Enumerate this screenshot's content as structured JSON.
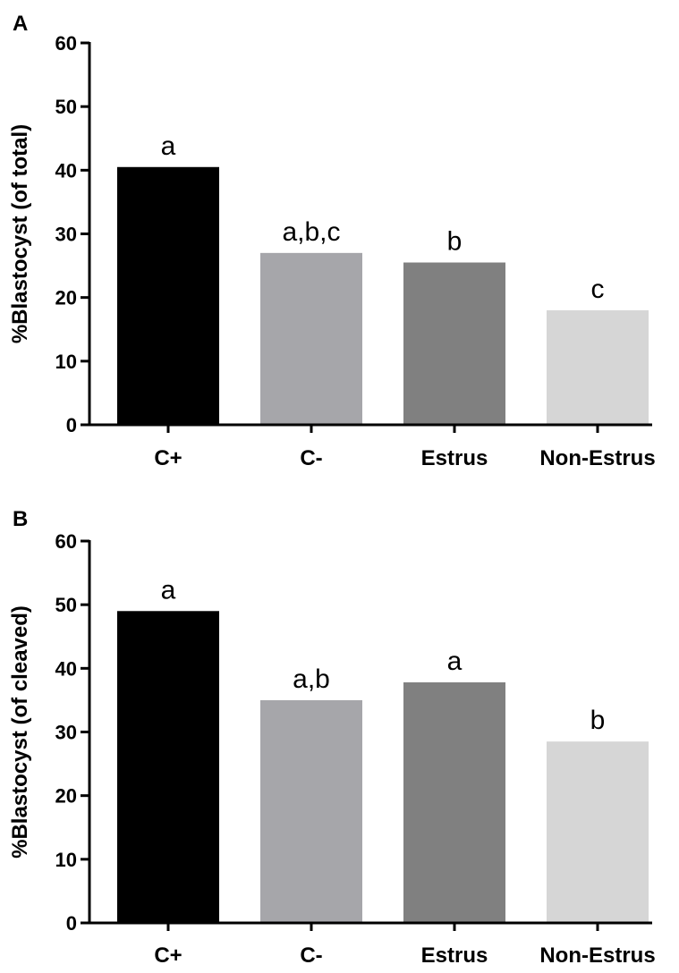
{
  "chart_data": [
    {
      "type": "bar",
      "panel": "A",
      "categories": [
        "C+",
        "C-",
        "Estrus",
        "Non-Estrus"
      ],
      "values": [
        40.5,
        27.0,
        25.5,
        18.0
      ],
      "significance": [
        "a",
        "a,b,c",
        "b",
        "c"
      ],
      "colors": [
        "#000000",
        "#a6a6aa",
        "#808080",
        "#d6d6d6"
      ],
      "ylabel": "%Blastocyst (of total)",
      "ylim": [
        0,
        60
      ],
      "yticks": [
        0,
        10,
        20,
        30,
        40,
        50,
        60
      ],
      "grid": false,
      "legend": "none"
    },
    {
      "type": "bar",
      "panel": "B",
      "categories": [
        "C+",
        "C-",
        "Estrus",
        "Non-Estrus"
      ],
      "values": [
        49.0,
        35.0,
        37.8,
        28.5
      ],
      "significance": [
        "a",
        "a,b",
        "a",
        "b"
      ],
      "colors": [
        "#000000",
        "#a6a6aa",
        "#808080",
        "#d6d6d6"
      ],
      "ylabel": "%Blastocyst (of cleaved)",
      "ylim": [
        0,
        60
      ],
      "yticks": [
        0,
        10,
        20,
        30,
        40,
        50,
        60
      ],
      "grid": false,
      "legend": "none"
    }
  ]
}
